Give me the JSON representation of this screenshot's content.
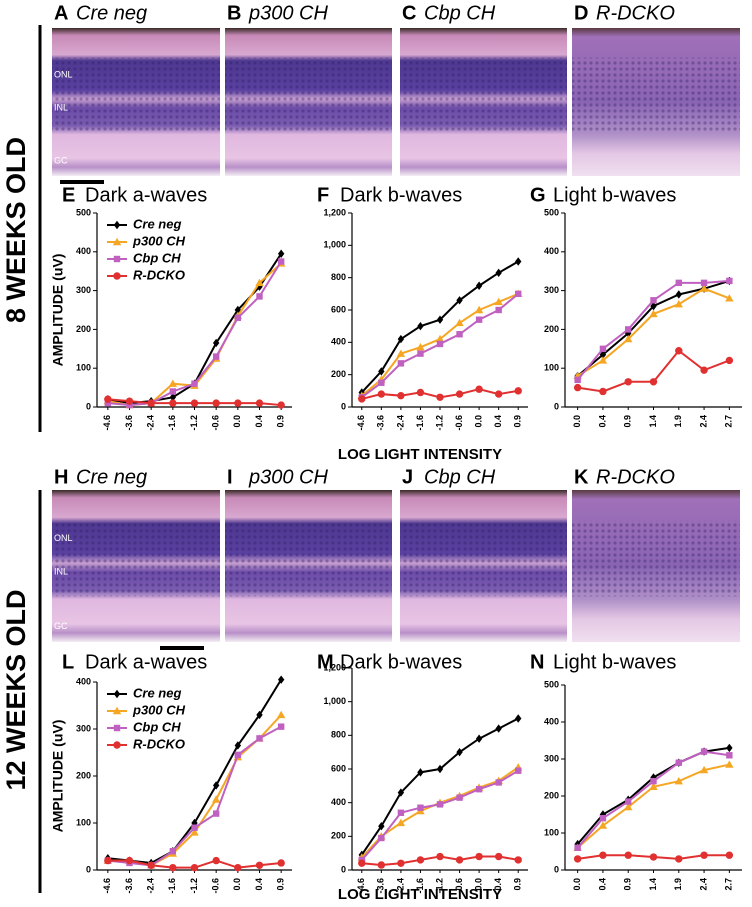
{
  "rows": [
    {
      "label": "8 WEEKS OLD",
      "x_label": "LOG LIGHT INTENSITY",
      "images": [
        {
          "panel": "A",
          "title": "Cre neg",
          "layers": [
            "ONL",
            "INL",
            "GC"
          ]
        },
        {
          "panel": "B",
          "title": "p300 CH"
        },
        {
          "panel": "C",
          "title": "Cbp CH"
        },
        {
          "panel": "D",
          "title": "R-DCKO"
        }
      ]
    },
    {
      "label": "12 WEEKS OLD",
      "x_label": "LOG LIGHT INTENSITY",
      "images": [
        {
          "panel": "H",
          "title": "Cre neg",
          "layers": [
            "ONL",
            "INL",
            "GC"
          ]
        },
        {
          "panel": "I",
          "title": "p300 CH"
        },
        {
          "panel": "J",
          "title": "Cbp CH"
        },
        {
          "panel": "K",
          "title": "R-DCKO"
        }
      ]
    }
  ],
  "chart_data": [
    {
      "type": "line",
      "panel": "E",
      "title": "Dark a-waves",
      "ylabel": "AMPLITUDE (uV)",
      "categories": [
        "-4.6",
        "-3.6",
        "-2.4",
        "-1.6",
        "-1.2",
        "-0.6",
        "0.0",
        "0.4",
        "0.9"
      ],
      "ylim": [
        0,
        500
      ],
      "yticks": [
        0,
        100,
        200,
        300,
        400,
        500
      ],
      "series": [
        {
          "name": "Cre neg",
          "color": "#000000",
          "values": [
            20,
            10,
            15,
            25,
            60,
            165,
            250,
            310,
            395
          ]
        },
        {
          "name": "p300 CH",
          "color": "#f5a623",
          "values": [
            15,
            5,
            10,
            60,
            55,
            125,
            235,
            320,
            370
          ]
        },
        {
          "name": "Cbp CH",
          "color": "#c060c0",
          "values": [
            10,
            5,
            10,
            40,
            60,
            130,
            230,
            285,
            375
          ]
        },
        {
          "name": "R-DCKO",
          "color": "#e03030",
          "values": [
            20,
            15,
            10,
            10,
            10,
            10,
            10,
            10,
            5
          ]
        }
      ]
    },
    {
      "type": "line",
      "panel": "F",
      "title": "Dark b-waves",
      "categories": [
        "-4.6",
        "-3.6",
        "-2.4",
        "-1.6",
        "-1.2",
        "-0.6",
        "0.0",
        "0.4",
        "0.9"
      ],
      "ylim": [
        0,
        1200
      ],
      "yticks": [
        0,
        200,
        400,
        600,
        800,
        {
          "value": 1000,
          "label": "1,000"
        },
        {
          "value": 1200,
          "label": "1,200"
        }
      ],
      "series": [
        {
          "color": "#000000",
          "values": [
            90,
            220,
            420,
            500,
            540,
            660,
            750,
            830,
            900
          ]
        },
        {
          "color": "#f5a623",
          "values": [
            70,
            170,
            330,
            370,
            420,
            520,
            600,
            650,
            700
          ]
        },
        {
          "color": "#c060c0",
          "values": [
            60,
            150,
            270,
            330,
            390,
            450,
            540,
            600,
            700
          ]
        },
        {
          "color": "#e03030",
          "values": [
            50,
            80,
            70,
            90,
            60,
            80,
            110,
            80,
            100
          ]
        }
      ]
    },
    {
      "type": "line",
      "panel": "G",
      "title": "Light b-waves",
      "categories": [
        "0.0",
        "0.4",
        "0.9",
        "1.4",
        "1.9",
        "2.4",
        "2.7"
      ],
      "ylim": [
        0,
        500
      ],
      "yticks": [
        0,
        100,
        200,
        300,
        400,
        500
      ],
      "series": [
        {
          "color": "#000000",
          "values": [
            80,
            135,
            190,
            260,
            290,
            305,
            325
          ]
        },
        {
          "color": "#f5a623",
          "values": [
            80,
            120,
            175,
            240,
            265,
            305,
            280
          ]
        },
        {
          "color": "#c060c0",
          "values": [
            70,
            150,
            200,
            275,
            320,
            320,
            325
          ]
        },
        {
          "color": "#e03030",
          "values": [
            50,
            40,
            65,
            65,
            145,
            95,
            120
          ]
        }
      ]
    },
    {
      "type": "line",
      "panel": "L",
      "title": "Dark a-waves",
      "ylabel": "AMPLITUDE (uV)",
      "categories": [
        "-4.6",
        "-3.6",
        "-2.4",
        "-1.6",
        "-1.2",
        "-0.6",
        "0.0",
        "0.4",
        "0.9"
      ],
      "ylim": [
        0,
        400
      ],
      "yticks": [
        0,
        100,
        200,
        300,
        400
      ],
      "series": [
        {
          "name": "Cre neg",
          "color": "#000000",
          "values": [
            25,
            20,
            15,
            40,
            100,
            180,
            265,
            330,
            405
          ]
        },
        {
          "name": "p300 CH",
          "color": "#f5a623",
          "values": [
            20,
            20,
            10,
            35,
            80,
            150,
            240,
            280,
            330
          ]
        },
        {
          "name": "Cbp CH",
          "color": "#c060c0",
          "values": [
            20,
            15,
            10,
            40,
            90,
            120,
            245,
            280,
            305
          ]
        },
        {
          "name": "R-DCKO",
          "color": "#e03030",
          "values": [
            20,
            20,
            10,
            5,
            5,
            20,
            5,
            10,
            15
          ]
        }
      ]
    },
    {
      "type": "line",
      "panel": "M",
      "title": "Dark b-waves",
      "categories": [
        "-4.6",
        "-3.6",
        "-2.4",
        "-1.6",
        "-1.2",
        "-0.6",
        "0.0",
        "0.4",
        "0.9"
      ],
      "ylim": [
        0,
        1200
      ],
      "yticks": [
        0,
        200,
        400,
        600,
        800,
        {
          "value": 1000,
          "label": "1,000"
        },
        {
          "value": 1200,
          "label": "1,200"
        }
      ],
      "series": [
        {
          "color": "#000000",
          "values": [
            90,
            260,
            460,
            580,
            600,
            700,
            780,
            840,
            900
          ]
        },
        {
          "color": "#f5a623",
          "values": [
            75,
            200,
            280,
            350,
            400,
            440,
            490,
            530,
            610
          ]
        },
        {
          "color": "#c060c0",
          "values": [
            60,
            190,
            340,
            370,
            390,
            430,
            480,
            520,
            590
          ]
        },
        {
          "color": "#e03030",
          "values": [
            40,
            30,
            40,
            60,
            80,
            60,
            80,
            80,
            60
          ]
        }
      ]
    },
    {
      "type": "line",
      "panel": "N",
      "title": "Light b-waves",
      "categories": [
        "0.0",
        "0.4",
        "0.9",
        "1.4",
        "1.9",
        "2.4",
        "2.7"
      ],
      "ylim": [
        0,
        500
      ],
      "yticks": [
        0,
        100,
        200,
        300,
        400,
        500
      ],
      "series": [
        {
          "color": "#000000",
          "values": [
            70,
            150,
            190,
            250,
            290,
            320,
            330
          ]
        },
        {
          "color": "#f5a623",
          "values": [
            60,
            120,
            170,
            225,
            240,
            270,
            285
          ]
        },
        {
          "color": "#c060c0",
          "values": [
            60,
            140,
            185,
            240,
            290,
            320,
            310
          ]
        },
        {
          "color": "#e03030",
          "values": [
            30,
            40,
            40,
            35,
            30,
            40,
            40
          ]
        }
      ]
    }
  ]
}
